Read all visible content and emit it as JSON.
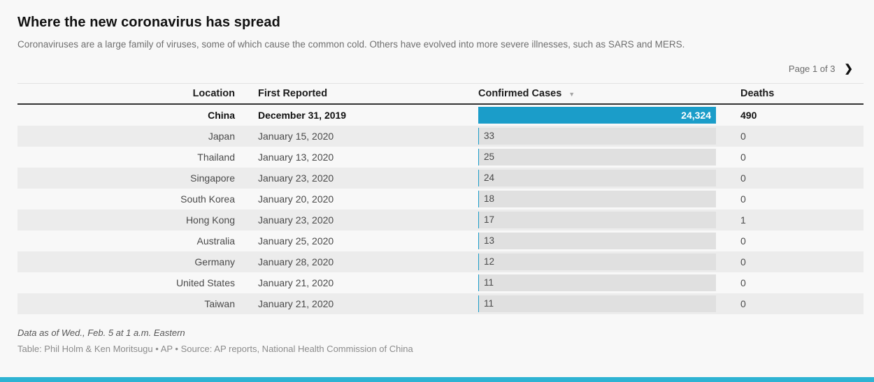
{
  "header": {
    "title": "Where the new coronavirus has spread",
    "subtitle": "Coronaviruses are a large family of viruses, some of which cause the common cold. Others have evolved into more severe illnesses, such as SARS and MERS."
  },
  "pagination": {
    "label": "Page 1 of 3"
  },
  "icons": {
    "next_page": "❯",
    "sort_desc": "▼"
  },
  "table": {
    "columns": [
      "Location",
      "First Reported",
      "Confirmed Cases",
      "Deaths"
    ],
    "sort": {
      "column": "Confirmed Cases",
      "direction": "desc"
    },
    "bar_max": 24324,
    "rows": [
      {
        "location": "China",
        "first_reported": "December 31, 2019",
        "confirmed": 24324,
        "confirmed_label": "24,324",
        "deaths": "490",
        "highlight": true
      },
      {
        "location": "Japan",
        "first_reported": "January 15, 2020",
        "confirmed": 33,
        "confirmed_label": "33",
        "deaths": "0"
      },
      {
        "location": "Thailand",
        "first_reported": "January 13, 2020",
        "confirmed": 25,
        "confirmed_label": "25",
        "deaths": "0"
      },
      {
        "location": "Singapore",
        "first_reported": "January 23, 2020",
        "confirmed": 24,
        "confirmed_label": "24",
        "deaths": "0"
      },
      {
        "location": "South Korea",
        "first_reported": "January 20, 2020",
        "confirmed": 18,
        "confirmed_label": "18",
        "deaths": "0"
      },
      {
        "location": "Hong Kong",
        "first_reported": "January 23, 2020",
        "confirmed": 17,
        "confirmed_label": "17",
        "deaths": "1"
      },
      {
        "location": "Australia",
        "first_reported": "January 25, 2020",
        "confirmed": 13,
        "confirmed_label": "13",
        "deaths": "0"
      },
      {
        "location": "Germany",
        "first_reported": "January 28, 2020",
        "confirmed": 12,
        "confirmed_label": "12",
        "deaths": "0"
      },
      {
        "location": "United States",
        "first_reported": "January 21, 2020",
        "confirmed": 11,
        "confirmed_label": "11",
        "deaths": "0"
      },
      {
        "location": "Taiwan",
        "first_reported": "January 21, 2020",
        "confirmed": 11,
        "confirmed_label": "11",
        "deaths": "0"
      }
    ]
  },
  "footer": {
    "data_note": "Data as of Wed., Feb. 5 at 1 a.m. Eastern",
    "credit": "Table: Phil Holm & Ken Moritsugu • AP • Source: AP reports, National Health Commission of China"
  },
  "colors": {
    "bar_fill": "#1b9dc9",
    "bar_track": "#e0e0e0",
    "row_stripe": "#ececec",
    "accent_bottom_bar": "#2eb3d3"
  },
  "chart_data": {
    "type": "table",
    "title": "Where the new coronavirus has spread",
    "subtitle": "Coronaviruses are a large family of viruses, some of which cause the common cold. Others have evolved into more severe illnesses, such as SARS and MERS.",
    "columns": [
      "Location",
      "First Reported",
      "Confirmed Cases",
      "Deaths"
    ],
    "rows": [
      [
        "China",
        "December 31, 2019",
        24324,
        490
      ],
      [
        "Japan",
        "January 15, 2020",
        33,
        0
      ],
      [
        "Thailand",
        "January 13, 2020",
        25,
        0
      ],
      [
        "Singapore",
        "January 23, 2020",
        24,
        0
      ],
      [
        "South Korea",
        "January 20, 2020",
        18,
        0
      ],
      [
        "Hong Kong",
        "January 23, 2020",
        17,
        1
      ],
      [
        "Australia",
        "January 25, 2020",
        13,
        0
      ],
      [
        "Germany",
        "January 28, 2020",
        12,
        0
      ],
      [
        "United States",
        "January 21, 2020",
        11,
        0
      ],
      [
        "Taiwan",
        "January 21, 2020",
        11,
        0
      ]
    ],
    "bar_column": "Confirmed Cases",
    "bar_range": [
      0,
      24324
    ],
    "sort": {
      "column": "Confirmed Cases",
      "direction": "desc"
    },
    "pagination": "Page 1 of 3",
    "notes": "Data as of Wed., Feb. 5 at 1 a.m. Eastern",
    "source": "Table: Phil Holm & Ken Moritsugu • AP • Source: AP reports, National Health Commission of China"
  }
}
